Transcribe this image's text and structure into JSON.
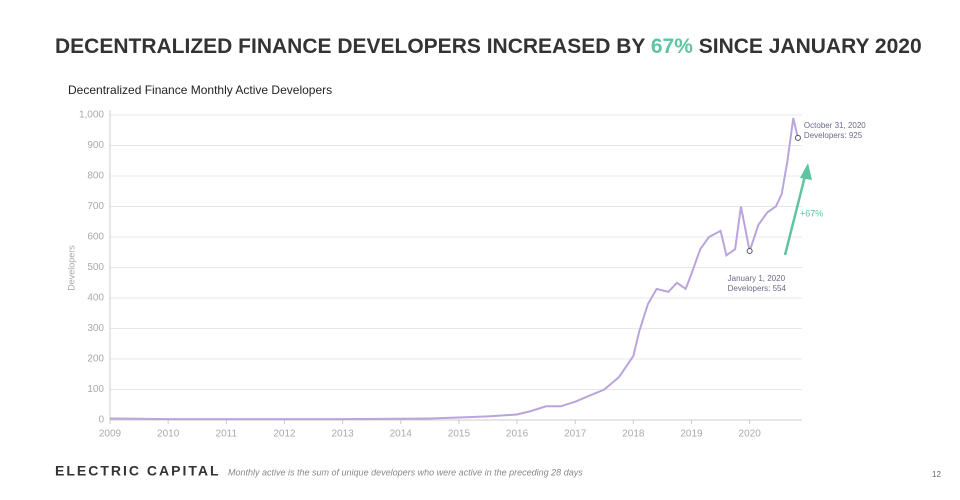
{
  "header": {
    "title_parts": [
      {
        "text": "DECENTRALIZED FINANCE DEVELOPERS INCREASED BY "
      },
      {
        "text": "67%",
        "color": "#5fc4a0"
      },
      {
        "text": " SINCE JANUARY 2020"
      }
    ]
  },
  "chart_data": {
    "type": "line",
    "title": "Decentralized Finance Monthly Active Developers",
    "y_label": "Developers",
    "x": [
      2009,
      2010,
      2011,
      2012,
      2013,
      2014,
      2014.5,
      2015,
      2015.5,
      2016,
      2016.25,
      2016.5,
      2016.75,
      2017,
      2017.25,
      2017.5,
      2017.75,
      2018,
      2018.1,
      2018.25,
      2018.4,
      2018.6,
      2018.75,
      2018.9,
      2019,
      2019.15,
      2019.3,
      2019.5,
      2019.6,
      2019.75,
      2019.85,
      2020,
      2020.15,
      2020.3,
      2020.45,
      2020.55,
      2020.65,
      2020.75,
      2020.83
    ],
    "series": [
      {
        "name": "Developers",
        "color": "#b9a4dc",
        "values": [
          5,
          3,
          3,
          3,
          3,
          4,
          5,
          8,
          12,
          18,
          30,
          45,
          45,
          60,
          80,
          100,
          140,
          210,
          290,
          380,
          430,
          420,
          450,
          430,
          480,
          560,
          600,
          620,
          540,
          560,
          700,
          554,
          640,
          680,
          700,
          740,
          850,
          990,
          925
        ]
      }
    ],
    "xlim": [
      2009,
      2020.9
    ],
    "xticks": [
      2009,
      2010,
      2011,
      2012,
      2013,
      2014,
      2015,
      2016,
      2017,
      2018,
      2019,
      2020
    ],
    "ylim": [
      0,
      1000
    ],
    "yticks": [
      0,
      100,
      200,
      300,
      400,
      500,
      600,
      700,
      800,
      900,
      {
        "value": 1000,
        "label": "1,000"
      }
    ],
    "grid": true,
    "annotations": [
      {
        "x": 2020,
        "y": 554,
        "label": "January 1, 2020",
        "sublabel": "Developers: 554"
      },
      {
        "x": 2020.83,
        "y": 925,
        "label": "October 31, 2020",
        "sublabel": "Developers: 925"
      }
    ],
    "change_label": "+67%",
    "change_color": "#5fc4a0"
  },
  "footer": {
    "brand": "ELECTRIC CAPITAL",
    "note": "Monthly active is the sum of unique developers who were active in the preceding 28 days",
    "page": "12"
  }
}
